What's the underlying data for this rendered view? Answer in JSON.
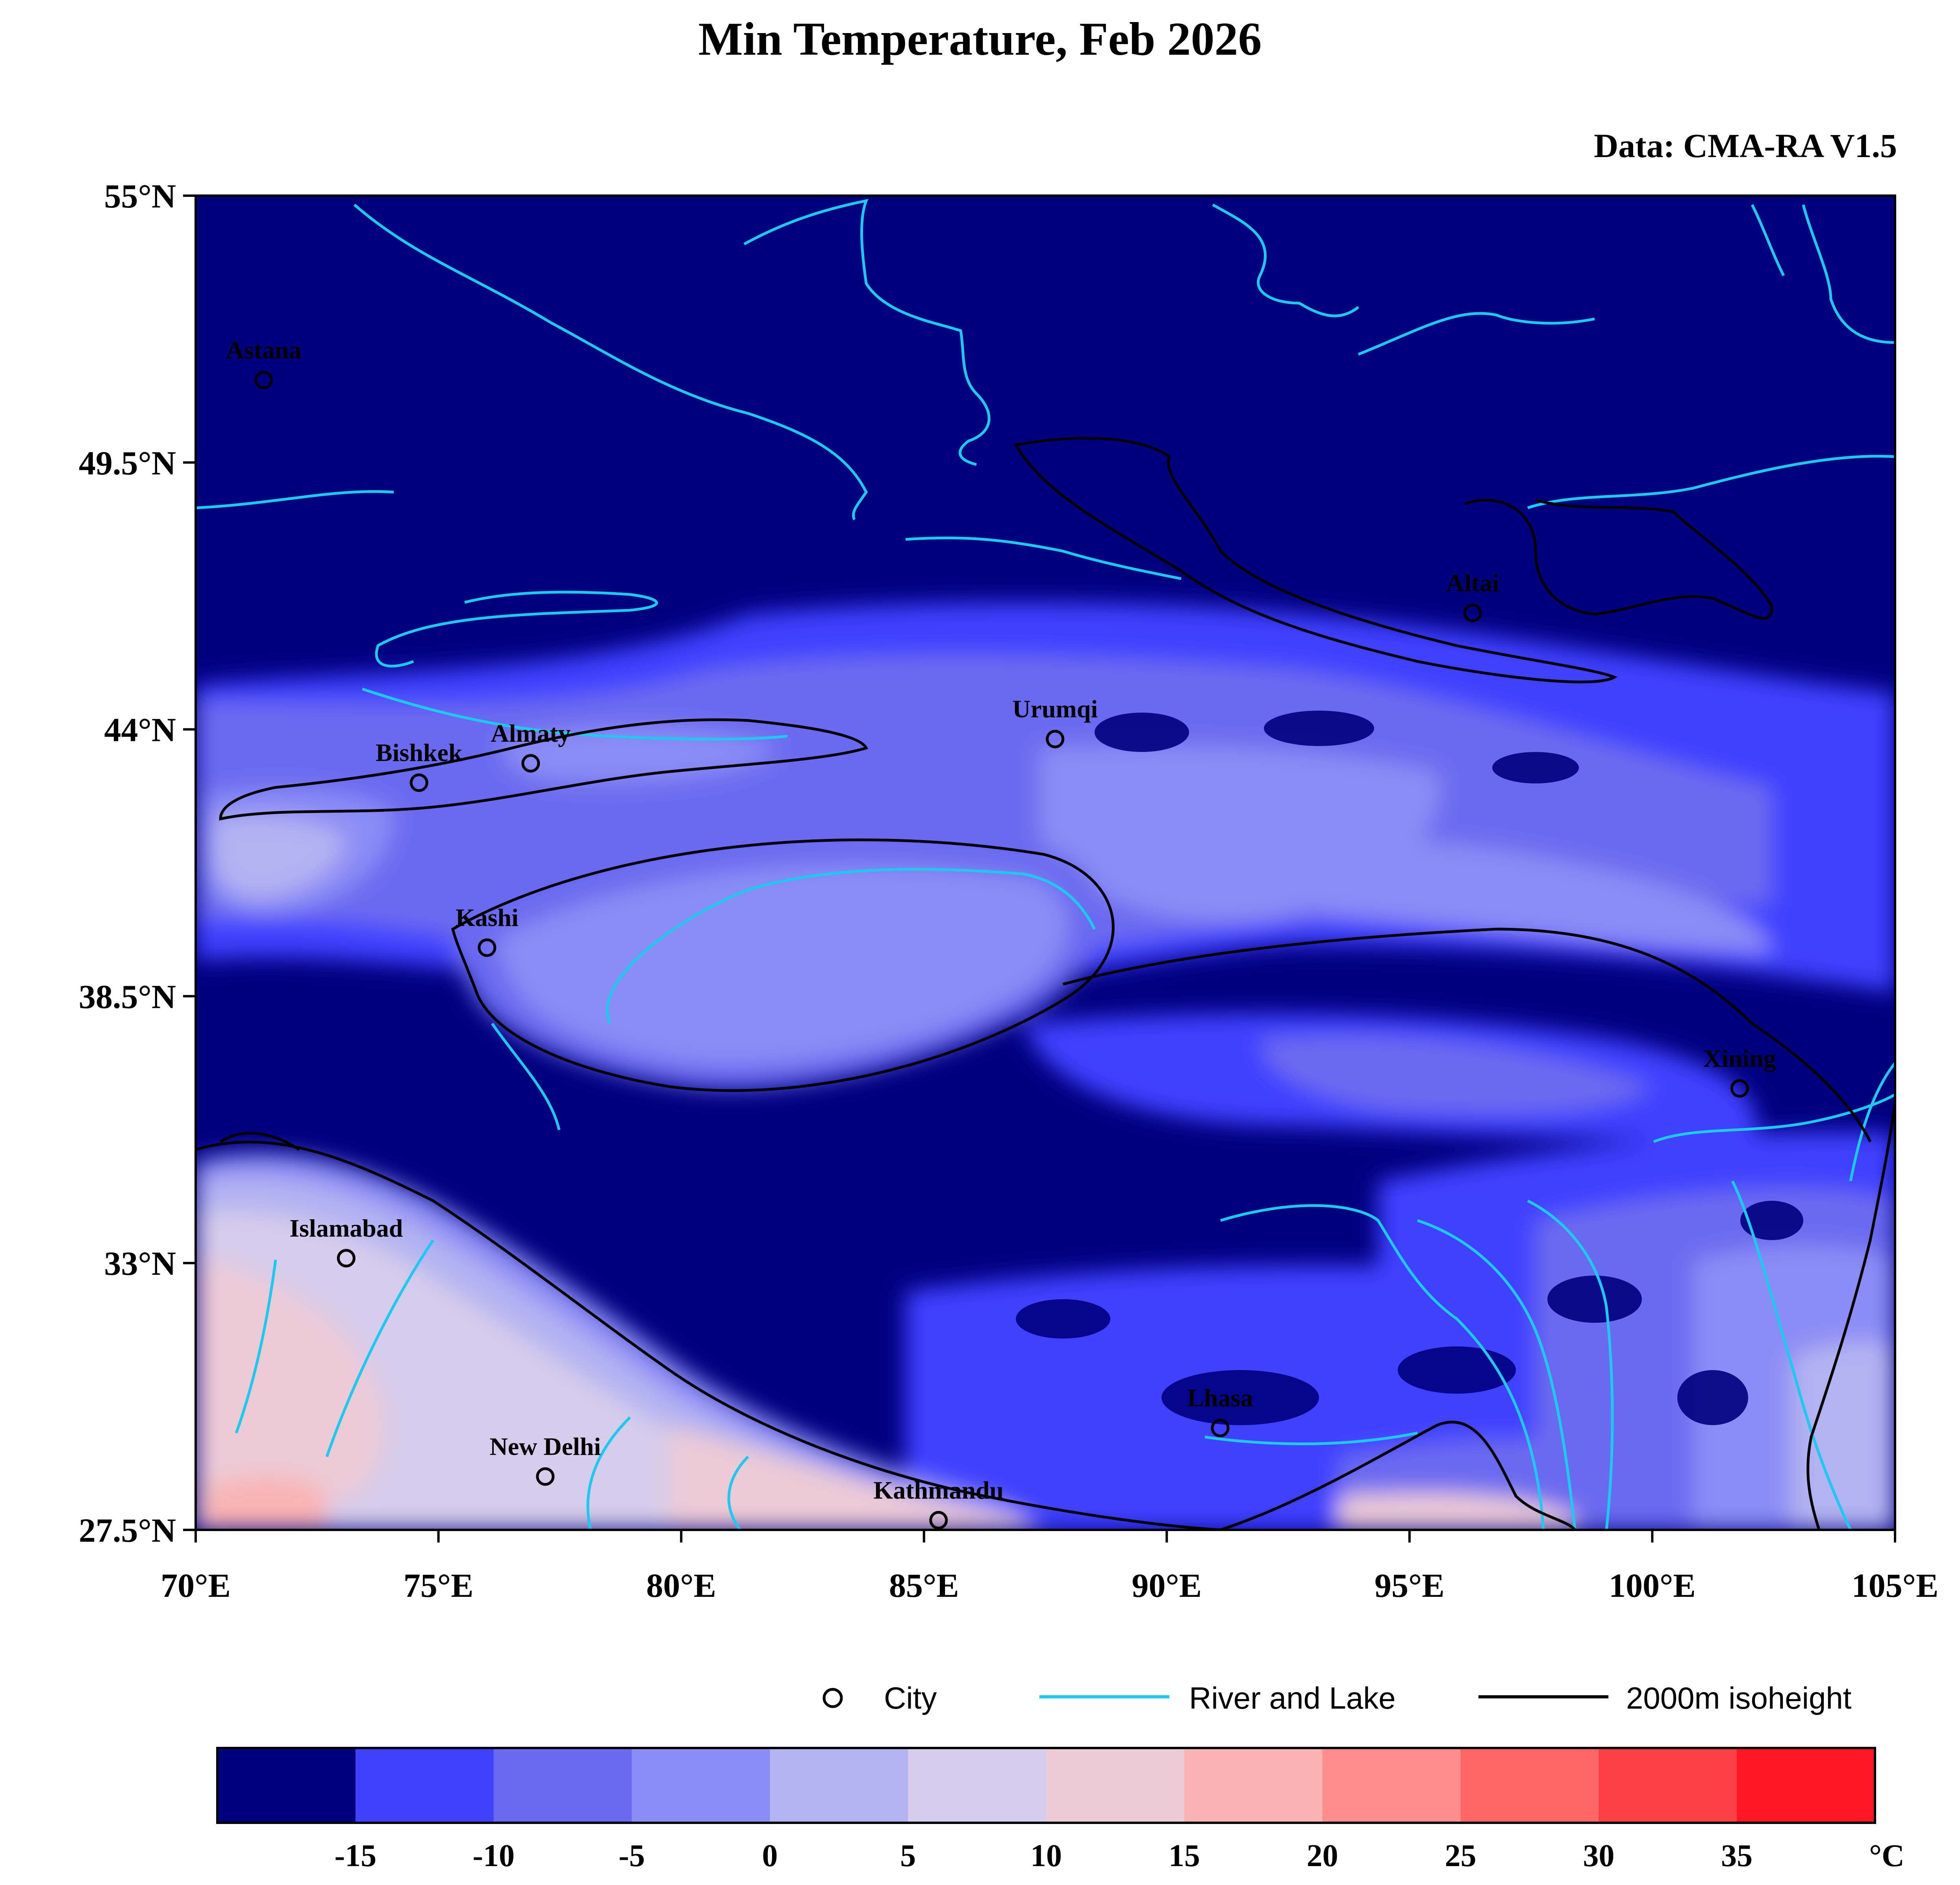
{
  "title": "Min Temperature, Feb 2026",
  "source": "Data: CMA-RA V1.5",
  "map": {
    "lon_range": [
      70,
      105
    ],
    "lat_range": [
      27.5,
      55
    ],
    "lon_ticks": [
      "70°E",
      "75°E",
      "80°E",
      "85°E",
      "90°E",
      "95°E",
      "100°E",
      "105°E"
    ],
    "lat_ticks": [
      "27.5°N",
      "33°N",
      "38.5°N",
      "44°N",
      "49.5°N",
      "55°N"
    ],
    "cities": [
      {
        "name": "Astana",
        "lon": 71.4,
        "lat": 51.2
      },
      {
        "name": "Altai",
        "lon": 96.3,
        "lat": 46.4
      },
      {
        "name": "Urumqi",
        "lon": 87.7,
        "lat": 43.8
      },
      {
        "name": "Almaty",
        "lon": 76.9,
        "lat": 43.3
      },
      {
        "name": "Bishkek",
        "lon": 74.6,
        "lat": 42.9
      },
      {
        "name": "Kashi",
        "lon": 76.0,
        "lat": 39.5
      },
      {
        "name": "Xining",
        "lon": 101.8,
        "lat": 36.6
      },
      {
        "name": "Islamabad",
        "lon": 73.1,
        "lat": 33.1
      },
      {
        "name": "Lhasa",
        "lon": 91.1,
        "lat": 29.6
      },
      {
        "name": "New Delhi",
        "lon": 77.2,
        "lat": 28.6
      },
      {
        "name": "Kathmandu",
        "lon": 85.3,
        "lat": 27.7
      }
    ]
  },
  "legend": {
    "city": "City",
    "river": "River and Lake",
    "isoheight": "2000m isoheight"
  },
  "colorbar": {
    "unit": "°C",
    "labels": [
      "-15",
      "-10",
      "-5",
      "0",
      "5",
      "10",
      "15",
      "20",
      "25",
      "30",
      "35"
    ],
    "colors": [
      "#00007f",
      "#4040ff",
      "#6a6af0",
      "#8c8cf6",
      "#b3b3f2",
      "#d6cceb",
      "#eccad6",
      "#f9b3b3",
      "#ff8c8c",
      "#ff6666",
      "#ff3f46",
      "#ff1726"
    ]
  },
  "colors": {
    "river": "#1ec8ef",
    "isoheight": "#000000"
  }
}
